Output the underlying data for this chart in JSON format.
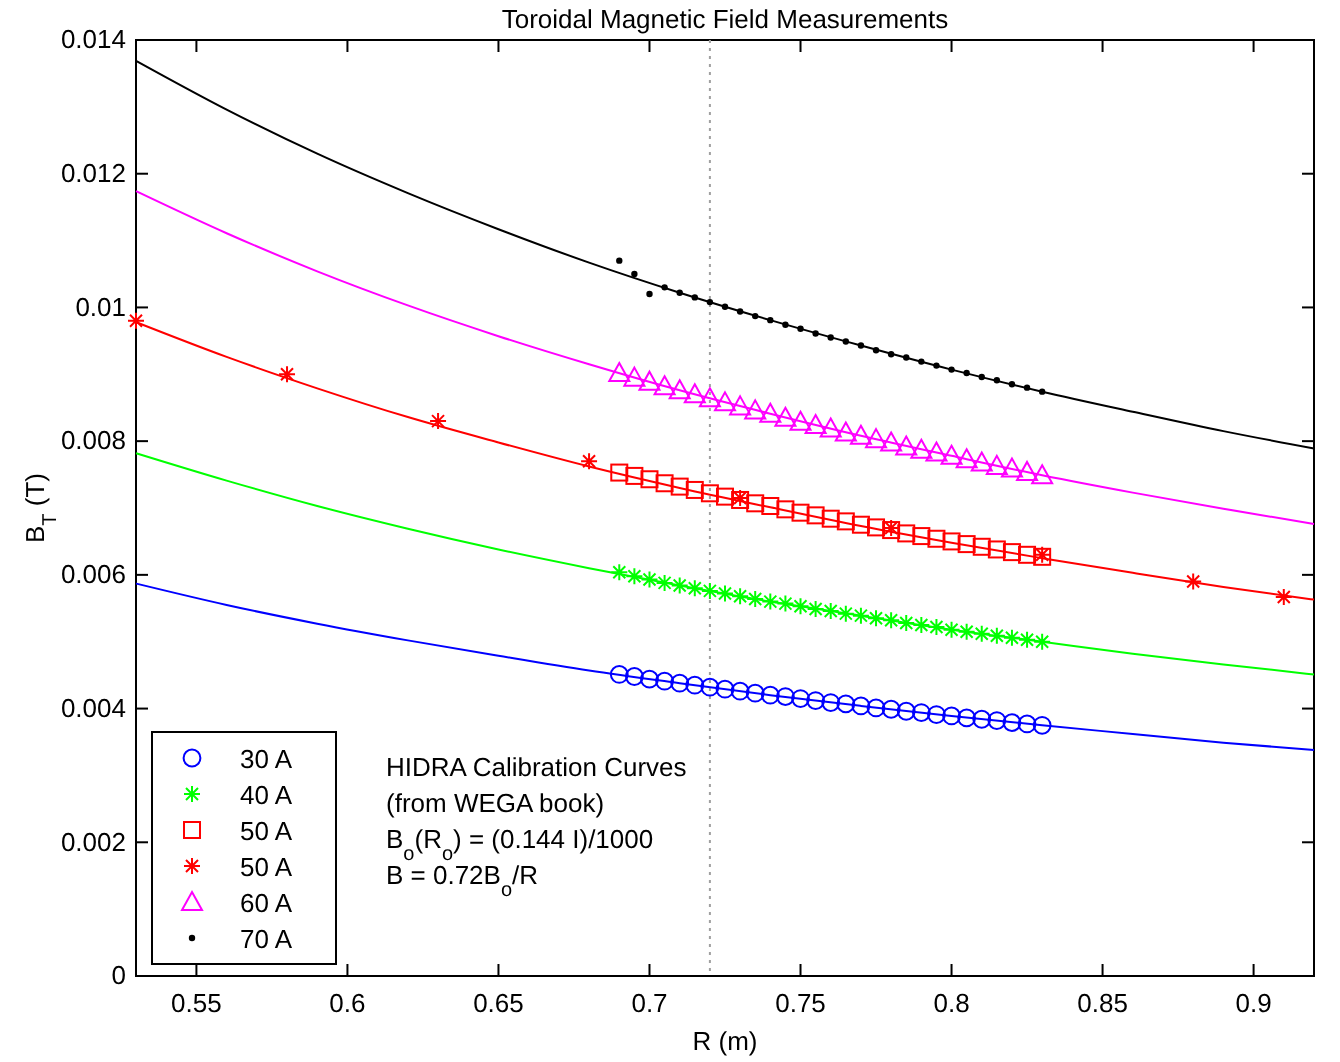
{
  "chart_data": {
    "type": "scatter",
    "title": "Toroidal Magnetic Field Measurements",
    "xlabel": "R  (m)",
    "ylabel": "B$_{T}$  (T)",
    "xlim": [
      0.53,
      0.92
    ],
    "xticks": [
      0.55,
      0.6,
      0.65,
      0.7,
      0.75,
      0.8,
      0.85,
      0.9
    ],
    "ylim": [
      0,
      0.014
    ],
    "yticks": [
      0,
      0.002,
      0.004,
      0.006,
      0.008,
      0.01,
      0.012,
      0.014
    ],
    "grid": false,
    "legend": "bottom left",
    "ref_lines": [
      {
        "axis": "x",
        "value": 0.72,
        "color": "#a0a0a0",
        "line_style": "dotted"
      }
    ],
    "annotations": [
      "HIDRA Calibration Curves",
      "(from WEGA book)",
      "B$_{o}$(R$_{o}$) = (0.144 I)/1000",
      "B = 0.72B$_{o}$/R"
    ],
    "series": [
      {
        "name": "30 A",
        "type": "scatter",
        "marker": "circle",
        "color": "#0000ff",
        "x": [
          0.69,
          0.695,
          0.7,
          0.705,
          0.71,
          0.715,
          0.72,
          0.725,
          0.73,
          0.735,
          0.74,
          0.745,
          0.75,
          0.755,
          0.76,
          0.765,
          0.77,
          0.775,
          0.78,
          0.785,
          0.79,
          0.795,
          0.8,
          0.805,
          0.81,
          0.815,
          0.82,
          0.825,
          0.83
        ],
        "values": [
          0.00451,
          0.00448,
          0.00444,
          0.00441,
          0.00438,
          0.00435,
          0.00432,
          0.00429,
          0.00426,
          0.00423,
          0.0042,
          0.00418,
          0.00415,
          0.00412,
          0.00409,
          0.00407,
          0.00404,
          0.00401,
          0.00399,
          0.00396,
          0.00394,
          0.00391,
          0.00389,
          0.00386,
          0.00384,
          0.00382,
          0.00379,
          0.00377,
          0.00375
        ]
      },
      {
        "name": "40 A",
        "type": "scatter",
        "marker": "cross",
        "color": "#00ff00",
        "x": [
          0.69,
          0.695,
          0.7,
          0.705,
          0.71,
          0.715,
          0.72,
          0.725,
          0.73,
          0.735,
          0.74,
          0.745,
          0.75,
          0.755,
          0.76,
          0.765,
          0.77,
          0.775,
          0.78,
          0.785,
          0.79,
          0.795,
          0.8,
          0.805,
          0.81,
          0.815,
          0.82,
          0.825,
          0.83
        ],
        "values": [
          0.00604,
          0.00598,
          0.00593,
          0.00588,
          0.00584,
          0.0058,
          0.00576,
          0.00572,
          0.00568,
          0.00564,
          0.0056,
          0.00557,
          0.00553,
          0.00549,
          0.00546,
          0.00542,
          0.00539,
          0.00535,
          0.00532,
          0.00528,
          0.00525,
          0.00522,
          0.00518,
          0.00515,
          0.00512,
          0.00509,
          0.00506,
          0.00503,
          0.005
        ]
      },
      {
        "name": "50 A",
        "type": "scatter",
        "marker": "square",
        "color": "#ff0000",
        "x": [
          0.69,
          0.695,
          0.7,
          0.705,
          0.71,
          0.715,
          0.72,
          0.725,
          0.73,
          0.735,
          0.74,
          0.745,
          0.75,
          0.755,
          0.76,
          0.765,
          0.77,
          0.775,
          0.78,
          0.785,
          0.79,
          0.795,
          0.8,
          0.805,
          0.81,
          0.815,
          0.82,
          0.825,
          0.83
        ],
        "values": [
          0.00753,
          0.00748,
          0.00743,
          0.00737,
          0.00732,
          0.00727,
          0.00722,
          0.00717,
          0.00712,
          0.00707,
          0.00703,
          0.00698,
          0.00693,
          0.00689,
          0.00684,
          0.0068,
          0.00675,
          0.00671,
          0.00667,
          0.00662,
          0.00658,
          0.00654,
          0.0065,
          0.00646,
          0.00642,
          0.00638,
          0.00634,
          0.0063,
          0.00627
        ]
      },
      {
        "name": "50 A",
        "type": "scatter",
        "marker": "cross",
        "color": "#ff0000",
        "x": [
          0.53,
          0.58,
          0.63,
          0.68,
          0.73,
          0.78,
          0.83,
          0.88,
          0.91
        ],
        "values": [
          0.0098,
          0.009,
          0.0083,
          0.0077,
          0.00715,
          0.0067,
          0.0063,
          0.0059,
          0.00567
        ]
      },
      {
        "name": "60 A",
        "type": "scatter",
        "marker": "triangle",
        "color": "#ff00ff",
        "x": [
          0.69,
          0.695,
          0.7,
          0.705,
          0.71,
          0.715,
          0.72,
          0.725,
          0.73,
          0.735,
          0.74,
          0.745,
          0.75,
          0.755,
          0.76,
          0.765,
          0.77,
          0.775,
          0.78,
          0.785,
          0.79,
          0.795,
          0.8,
          0.805,
          0.81,
          0.815,
          0.82,
          0.825,
          0.83
        ],
        "values": [
          0.00902,
          0.00895,
          0.00889,
          0.00882,
          0.00876,
          0.0087,
          0.00864,
          0.00858,
          0.00852,
          0.00846,
          0.00841,
          0.00835,
          0.00829,
          0.00824,
          0.00819,
          0.00813,
          0.00808,
          0.00803,
          0.00798,
          0.00792,
          0.00787,
          0.00783,
          0.00778,
          0.00773,
          0.00768,
          0.00763,
          0.00759,
          0.00754,
          0.00749
        ]
      },
      {
        "name": "70 A",
        "type": "scatter",
        "marker": "point",
        "color": "#000000",
        "x": [
          0.69,
          0.695,
          0.7,
          0.705,
          0.71,
          0.715,
          0.72,
          0.725,
          0.73,
          0.735,
          0.74,
          0.745,
          0.75,
          0.755,
          0.76,
          0.765,
          0.77,
          0.775,
          0.78,
          0.785,
          0.79,
          0.795,
          0.8,
          0.805,
          0.81,
          0.815,
          0.82,
          0.825,
          0.83
        ],
        "values": [
          0.0107,
          0.0105,
          0.0102,
          0.0103,
          0.01022,
          0.01015,
          0.01008,
          0.01001,
          0.00994,
          0.00987,
          0.00981,
          0.00974,
          0.00968,
          0.00961,
          0.00955,
          0.00949,
          0.00943,
          0.00936,
          0.0093,
          0.00925,
          0.00919,
          0.00913,
          0.00907,
          0.00902,
          0.00896,
          0.00891,
          0.00885,
          0.0088,
          0.00874
        ]
      },
      {
        "type": "line",
        "color": "#0000ff",
        "x": [
          0.53,
          0.56,
          0.59,
          0.62,
          0.65,
          0.68,
          0.71,
          0.74,
          0.77,
          0.8,
          0.83,
          0.86,
          0.89,
          0.92
        ],
        "values": [
          0.00587,
          0.00555,
          0.00527,
          0.00502,
          0.00479,
          0.00457,
          0.00438,
          0.0042,
          0.00404,
          0.00389,
          0.00375,
          0.00362,
          0.00349,
          0.00338
        ]
      },
      {
        "type": "line",
        "color": "#00ff00",
        "x": [
          0.53,
          0.56,
          0.59,
          0.62,
          0.65,
          0.68,
          0.71,
          0.74,
          0.77,
          0.8,
          0.83,
          0.86,
          0.89,
          0.92
        ],
        "values": [
          0.00782,
          0.00741,
          0.00703,
          0.00669,
          0.00638,
          0.0061,
          0.00584,
          0.0056,
          0.00539,
          0.00518,
          0.005,
          0.00482,
          0.00466,
          0.00451
        ]
      },
      {
        "type": "line",
        "color": "#ff0000",
        "x": [
          0.53,
          0.56,
          0.59,
          0.62,
          0.65,
          0.68,
          0.71,
          0.74,
          0.77,
          0.8,
          0.83,
          0.86,
          0.89,
          0.92
        ],
        "values": [
          0.00978,
          0.00926,
          0.00879,
          0.00836,
          0.00798,
          0.00762,
          0.0073,
          0.00701,
          0.00673,
          0.00648,
          0.00625,
          0.00603,
          0.00582,
          0.00563
        ]
      },
      {
        "type": "line",
        "color": "#ff00ff",
        "x": [
          0.53,
          0.56,
          0.59,
          0.62,
          0.65,
          0.68,
          0.71,
          0.74,
          0.77,
          0.8,
          0.83,
          0.86,
          0.89,
          0.92
        ],
        "values": [
          0.01174,
          0.01111,
          0.01054,
          0.01003,
          0.00957,
          0.00915,
          0.00876,
          0.00841,
          0.00808,
          0.00778,
          0.00749,
          0.00723,
          0.00699,
          0.00676
        ]
      },
      {
        "type": "line",
        "color": "#000000",
        "x": [
          0.53,
          0.56,
          0.59,
          0.62,
          0.65,
          0.68,
          0.71,
          0.74,
          0.77,
          0.8,
          0.83,
          0.86,
          0.89,
          0.92
        ],
        "values": [
          0.01369,
          0.01296,
          0.0123,
          0.01171,
          0.01117,
          0.01067,
          0.01022,
          0.00981,
          0.00943,
          0.00907,
          0.00874,
          0.00844,
          0.00815,
          0.00789
        ]
      }
    ]
  }
}
